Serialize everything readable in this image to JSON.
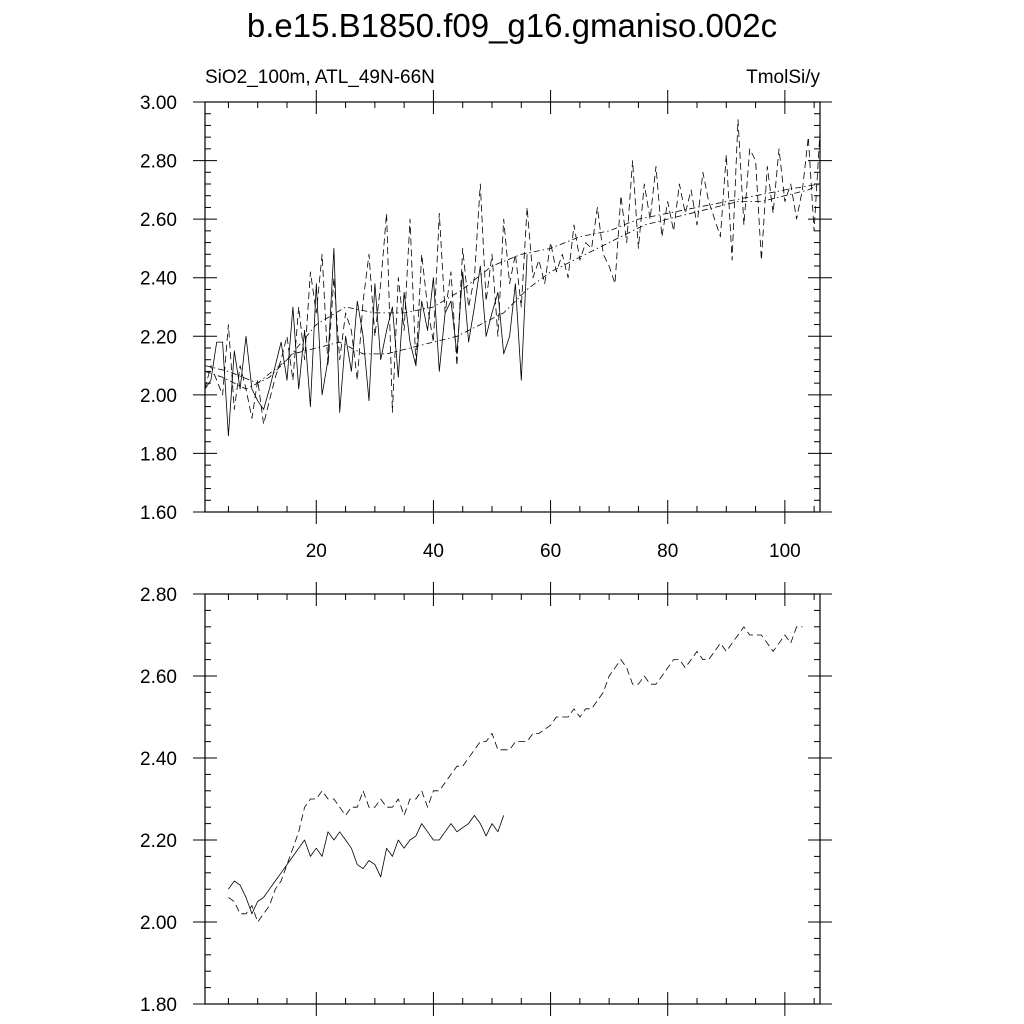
{
  "figure": {
    "title": "b.e15.B1850.f09_g16.gmaniso.002c"
  },
  "chart_data": [
    {
      "type": "line",
      "subtitle_left": "SiO2_100m, ATL_49N-66N",
      "subtitle_right": "TmolSi/y",
      "xlim": [
        1,
        106
      ],
      "ylim": [
        1.6,
        3.0
      ],
      "x_ticks": [
        20,
        40,
        60,
        80,
        100
      ],
      "x_tick_labels": [
        "20",
        "40",
        "60",
        "80",
        "100"
      ],
      "y_ticks": [
        1.6,
        1.8,
        2.0,
        2.2,
        2.4,
        2.6,
        2.8,
        3.0
      ],
      "y_tick_labels": [
        "1.60",
        "1.80",
        "2.00",
        "2.20",
        "2.40",
        "2.60",
        "2.80",
        "3.00"
      ],
      "series": [
        {
          "style": "solid",
          "x": [
            1,
            2,
            3,
            4,
            5,
            6,
            7,
            8,
            9,
            10,
            11,
            12,
            13,
            14,
            15,
            16,
            17,
            18,
            19,
            20,
            21,
            22,
            23,
            24,
            25,
            26,
            27,
            28,
            29,
            30,
            31,
            32,
            33,
            34,
            35,
            36,
            37,
            38,
            39,
            40,
            41,
            42,
            43,
            44,
            45,
            46,
            47,
            48,
            49,
            50,
            51,
            52,
            53,
            54,
            55,
            56
          ],
          "y": [
            2.02,
            2.05,
            2.18,
            2.18,
            1.86,
            2.15,
            2.02,
            2.2,
            2.02,
            1.98,
            1.95,
            2.02,
            2.1,
            2.18,
            2.05,
            2.3,
            2.02,
            2.22,
            1.96,
            2.38,
            2.0,
            2.12,
            2.5,
            1.94,
            2.2,
            2.08,
            2.32,
            2.2,
            1.98,
            2.38,
            2.12,
            2.22,
            2.3,
            2.06,
            2.35,
            2.18,
            2.1,
            2.32,
            2.22,
            2.4,
            2.08,
            2.28,
            2.32,
            2.14,
            2.42,
            2.18,
            2.3,
            2.44,
            2.2,
            2.28,
            2.35,
            2.14,
            2.2,
            2.38,
            2.05,
            2.48
          ]
        },
        {
          "style": "dashed",
          "x": [
            1,
            2,
            3,
            4,
            5,
            6,
            7,
            8,
            9,
            10,
            11,
            12,
            13,
            14,
            15,
            16,
            17,
            18,
            19,
            20,
            21,
            22,
            23,
            24,
            25,
            26,
            27,
            28,
            29,
            30,
            31,
            32,
            33,
            34,
            35,
            36,
            37,
            38,
            39,
            40,
            41,
            42,
            43,
            44,
            45,
            46,
            47,
            48,
            49,
            50,
            51,
            52,
            53,
            54,
            55,
            56,
            57,
            58,
            59,
            60,
            61,
            62,
            63,
            64,
            65,
            66,
            67,
            68,
            69,
            70,
            71,
            72,
            73,
            74,
            75,
            76,
            77,
            78,
            79,
            80,
            81,
            82,
            83,
            84,
            85,
            86,
            87,
            88,
            89,
            90,
            91,
            92,
            93,
            94,
            95,
            96,
            97,
            98,
            99,
            100,
            101,
            102,
            103,
            104,
            105,
            106
          ],
          "y": [
            2.02,
            2.1,
            2.05,
            2.0,
            2.24,
            1.95,
            2.1,
            2.02,
            1.92,
            2.05,
            1.9,
            1.98,
            2.06,
            2.12,
            2.2,
            2.05,
            2.3,
            2.12,
            2.42,
            2.28,
            2.48,
            2.1,
            2.4,
            2.12,
            2.28,
            2.22,
            2.05,
            2.32,
            2.48,
            2.2,
            2.38,
            2.62,
            1.94,
            2.4,
            2.22,
            2.6,
            2.1,
            2.48,
            2.3,
            2.18,
            2.62,
            2.28,
            2.42,
            2.1,
            2.5,
            2.3,
            2.4,
            2.72,
            2.32,
            2.48,
            2.2,
            2.6,
            2.38,
            2.48,
            2.3,
            2.64,
            2.4,
            2.46,
            2.38,
            2.52,
            2.42,
            2.48,
            2.4,
            2.58,
            2.46,
            2.52,
            2.5,
            2.64,
            2.48,
            2.44,
            2.38,
            2.68,
            2.52,
            2.8,
            2.5,
            2.72,
            2.6,
            2.78,
            2.54,
            2.66,
            2.56,
            2.72,
            2.62,
            2.7,
            2.58,
            2.76,
            2.66,
            2.6,
            2.54,
            2.82,
            2.46,
            2.94,
            2.58,
            2.84,
            2.8,
            2.46,
            2.78,
            2.62,
            2.84,
            2.66,
            2.72,
            2.6,
            2.7,
            2.88,
            2.56,
            2.9
          ]
        },
        {
          "style": "dash-dot",
          "x": [
            1,
            4,
            8,
            12,
            16,
            20,
            24,
            28,
            32,
            36,
            40,
            44,
            48,
            52,
            56,
            60,
            64,
            68,
            72,
            76,
            80,
            84,
            88,
            92,
            96,
            100,
            104,
            106
          ],
          "y": [
            2.08,
            2.06,
            2.02,
            2.06,
            2.14,
            2.16,
            2.18,
            2.14,
            2.14,
            2.16,
            2.18,
            2.2,
            2.24,
            2.28,
            2.36,
            2.42,
            2.46,
            2.5,
            2.54,
            2.58,
            2.6,
            2.62,
            2.64,
            2.66,
            2.66,
            2.68,
            2.7,
            2.72
          ]
        },
        {
          "style": "dash-dot",
          "x": [
            1,
            5,
            10,
            15,
            20,
            25,
            30,
            35,
            40,
            45,
            50,
            55,
            60,
            65,
            70,
            75,
            80,
            85,
            90,
            95,
            100,
            106
          ],
          "y": [
            2.1,
            2.08,
            2.04,
            2.12,
            2.24,
            2.3,
            2.28,
            2.28,
            2.3,
            2.36,
            2.44,
            2.48,
            2.5,
            2.54,
            2.56,
            2.6,
            2.62,
            2.64,
            2.66,
            2.68,
            2.7,
            2.72
          ]
        }
      ]
    },
    {
      "type": "line",
      "xlim": [
        1,
        106
      ],
      "ylim": [
        1.8,
        2.8
      ],
      "x_ticks": [
        20,
        40,
        60,
        80,
        100
      ],
      "y_ticks": [
        1.8,
        2.0,
        2.2,
        2.4,
        2.6,
        2.8
      ],
      "y_tick_labels": [
        "1.80",
        "2.00",
        "2.20",
        "2.40",
        "2.60",
        "2.80"
      ],
      "series": [
        {
          "style": "solid",
          "x": [
            5,
            6,
            7,
            8,
            9,
            10,
            11,
            12,
            13,
            14,
            15,
            16,
            17,
            18,
            19,
            20,
            21,
            22,
            23,
            24,
            25,
            26,
            27,
            28,
            29,
            30,
            31,
            32,
            33,
            34,
            35,
            36,
            37,
            38,
            39,
            40,
            41,
            42,
            43,
            44,
            45,
            46,
            47,
            48,
            49,
            50,
            51,
            52
          ],
          "y": [
            2.08,
            2.1,
            2.09,
            2.06,
            2.02,
            2.05,
            2.06,
            2.08,
            2.1,
            2.12,
            2.14,
            2.16,
            2.18,
            2.2,
            2.16,
            2.18,
            2.16,
            2.22,
            2.2,
            2.22,
            2.2,
            2.18,
            2.14,
            2.13,
            2.15,
            2.14,
            2.11,
            2.18,
            2.16,
            2.2,
            2.18,
            2.2,
            2.21,
            2.24,
            2.22,
            2.2,
            2.2,
            2.22,
            2.24,
            2.22,
            2.23,
            2.24,
            2.26,
            2.24,
            2.21,
            2.24,
            2.22,
            2.26
          ]
        },
        {
          "style": "dashed",
          "x": [
            5,
            6,
            7,
            8,
            9,
            10,
            11,
            12,
            13,
            14,
            15,
            16,
            17,
            18,
            19,
            20,
            21,
            22,
            23,
            24,
            25,
            26,
            27,
            28,
            29,
            30,
            31,
            32,
            33,
            34,
            35,
            36,
            37,
            38,
            39,
            40,
            41,
            42,
            43,
            44,
            45,
            46,
            47,
            48,
            49,
            50,
            51,
            52,
            53,
            54,
            55,
            56,
            57,
            58,
            59,
            60,
            61,
            62,
            63,
            64,
            65,
            66,
            67,
            68,
            69,
            70,
            71,
            72,
            73,
            74,
            75,
            76,
            77,
            78,
            79,
            80,
            81,
            82,
            83,
            84,
            85,
            86,
            87,
            88,
            89,
            90,
            91,
            92,
            93,
            94,
            95,
            96,
            97,
            98,
            99,
            100,
            101,
            102,
            103
          ],
          "y": [
            2.06,
            2.05,
            2.02,
            2.02,
            2.04,
            2.0,
            2.02,
            2.04,
            2.08,
            2.1,
            2.14,
            2.18,
            2.22,
            2.28,
            2.3,
            2.3,
            2.32,
            2.3,
            2.3,
            2.28,
            2.26,
            2.28,
            2.28,
            2.32,
            2.28,
            2.28,
            2.3,
            2.28,
            2.28,
            2.3,
            2.26,
            2.3,
            2.3,
            2.32,
            2.28,
            2.32,
            2.32,
            2.34,
            2.36,
            2.38,
            2.38,
            2.4,
            2.42,
            2.44,
            2.44,
            2.46,
            2.42,
            2.42,
            2.42,
            2.44,
            2.44,
            2.44,
            2.46,
            2.46,
            2.47,
            2.48,
            2.5,
            2.5,
            2.5,
            2.52,
            2.5,
            2.52,
            2.52,
            2.54,
            2.56,
            2.6,
            2.62,
            2.64,
            2.62,
            2.58,
            2.58,
            2.6,
            2.58,
            2.58,
            2.6,
            2.62,
            2.64,
            2.64,
            2.62,
            2.64,
            2.66,
            2.64,
            2.64,
            2.66,
            2.68,
            2.66,
            2.68,
            2.7,
            2.72,
            2.7,
            2.7,
            2.7,
            2.68,
            2.66,
            2.68,
            2.7,
            2.68,
            2.72,
            2.72
          ]
        }
      ]
    }
  ]
}
